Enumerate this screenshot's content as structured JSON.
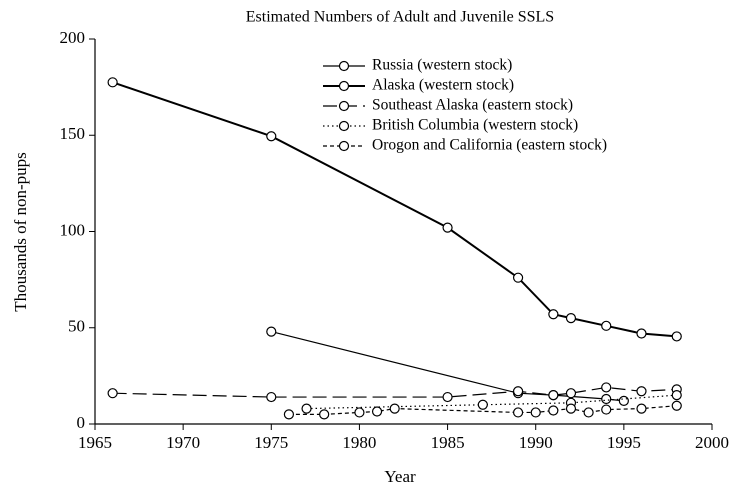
{
  "chart_data": {
    "type": "line",
    "title": "Estimated Numbers of Adult and Juvenile SSLS",
    "x_label": "Year",
    "y_label": "Thousands of non-pups",
    "xlim": [
      1965,
      2000
    ],
    "xticks": [
      1965,
      1970,
      1975,
      1980,
      1985,
      1990,
      1995,
      2000
    ],
    "ylim": [
      0,
      200
    ],
    "yticks": [
      0,
      50,
      100,
      150,
      200
    ],
    "legend": "top",
    "grid": false,
    "series": [
      {
        "name": "Russia (western stock)",
        "color": "#000000",
        "dash": "solid",
        "width": 1.2,
        "x": [
          1975,
          1989,
          1991,
          1994,
          1995
        ],
        "values": [
          48,
          16,
          15,
          13,
          12
        ]
      },
      {
        "name": "Alaska (western stock)",
        "color": "#000000",
        "dash": "solid",
        "width": 2,
        "x": [
          1966,
          1975,
          1985,
          1989,
          1991,
          1992,
          1994,
          1996,
          1998
        ],
        "values": [
          177.5,
          149.5,
          102,
          76,
          57,
          55,
          51,
          47,
          45.5
        ]
      },
      {
        "name": "Southeast Alaska (eastern stock)",
        "color": "#000000",
        "dash": "long",
        "width": 1.2,
        "x": [
          1966,
          1975,
          1985,
          1989,
          1991,
          1992,
          1994,
          1996,
          1998
        ],
        "values": [
          16,
          14,
          14,
          17,
          15,
          16,
          19,
          17,
          18
        ]
      },
      {
        "name": "British Columbia (western stock)",
        "color": "#000000",
        "dash": "dotted",
        "width": 1.2,
        "x": [
          1977,
          1987,
          1992,
          1998
        ],
        "values": [
          8,
          10,
          11,
          15
        ]
      },
      {
        "name": "Orogon and California (eastern stock)",
        "color": "#000000",
        "dash": "short",
        "width": 1.2,
        "x": [
          1976,
          1978,
          1980,
          1981,
          1982,
          1989,
          1990,
          1991,
          1992,
          1993,
          1994,
          1996,
          1998
        ],
        "values": [
          5,
          5,
          6,
          6.5,
          8,
          6,
          6,
          7,
          8,
          6,
          7.5,
          8,
          9.5
        ]
      }
    ]
  }
}
